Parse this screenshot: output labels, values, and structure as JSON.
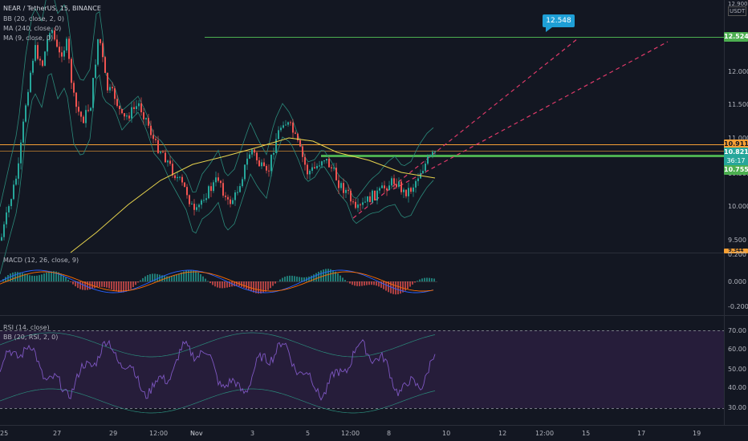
{
  "header": {
    "symbol_line": "NEAR / TetherUS, 15, BINANCE",
    "indicators": [
      "BB (20, close, 2, 0)",
      "MA (240, close, 0)",
      "MA (9, close, 0)"
    ]
  },
  "price_axis": {
    "currency": "USDT",
    "top_price": "12.900",
    "ticks": [
      "12.000",
      "11.500",
      "11.000",
      "10.500",
      "10.000",
      "9.500"
    ]
  },
  "price_markers": {
    "level_line": "12.524",
    "orange_line": "10.911",
    "last_price": "10.821",
    "countdown": "36:17",
    "green_line": "10.755",
    "partial": "9.344"
  },
  "callout": {
    "text": "12.548"
  },
  "macd": {
    "title": "MACD (12, 26, close, 9)",
    "ticks": [
      "0.200",
      "0.000",
      "-0.200"
    ]
  },
  "rsi": {
    "title": "RSI (14, close)",
    "subtitle": "BB (20, RSI, 2, 0)",
    "ticks": [
      "70.00",
      "60.00",
      "50.00",
      "40.00",
      "30.00"
    ]
  },
  "time_axis": [
    "25",
    "27",
    "29",
    "12:00",
    "Nov",
    "3",
    "5",
    "12:00",
    "8",
    "10",
    "12",
    "12:00",
    "15",
    "17",
    "19"
  ],
  "colors": {
    "background": "#131722",
    "candle_up": "#26a69a",
    "candle_down": "#ef5350",
    "ma240": "#e8d44d",
    "bb": "#2b8a7b",
    "level_green": "#4caf50",
    "orange": "#f7a035",
    "trend_pink": "#e03a6a",
    "rsi_fill": "#261d3a",
    "callout": "#1e9fd6"
  }
}
